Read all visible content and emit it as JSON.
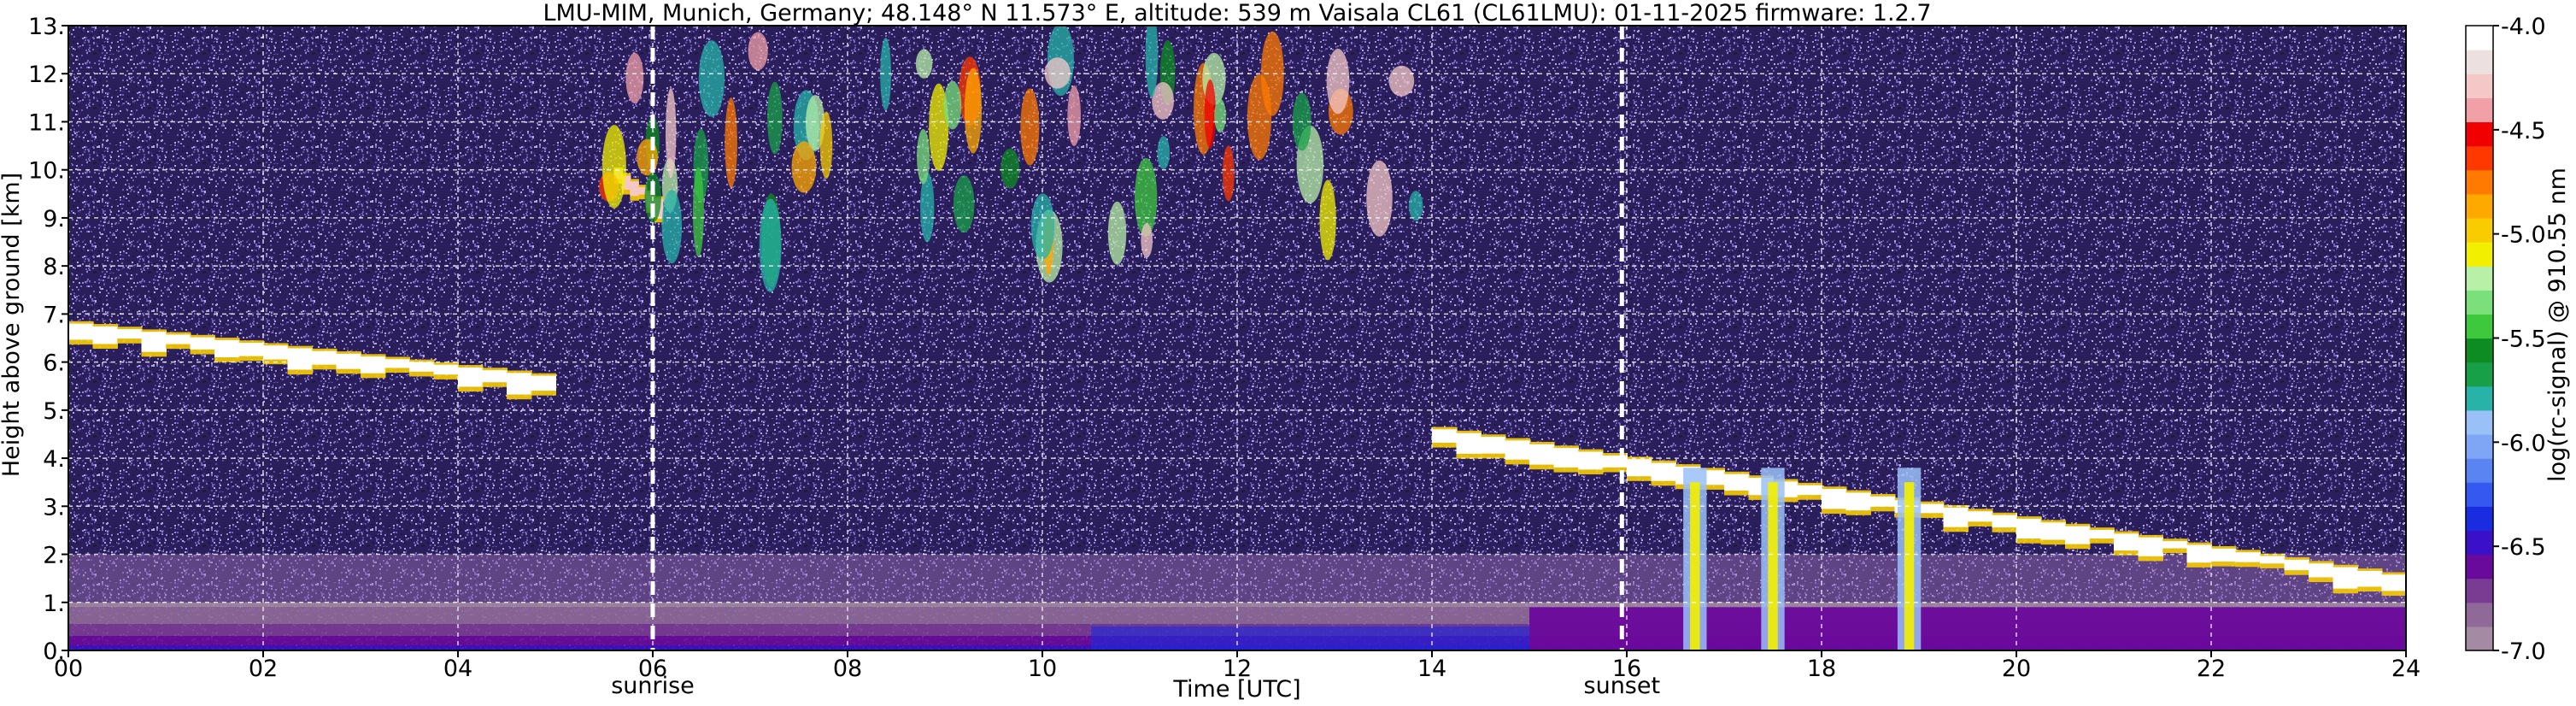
{
  "chart_data": {
    "type": "heatmap",
    "title": "LMU-MIM, Munich, Germany; 48.148° N 11.573° E, altitude: 539 m    Vaisala CL61 (CL61LMU): 01-11-2025    firmware: 1.2.7",
    "xlabel": "Time [UTC]",
    "ylabel": "Height above ground [km]",
    "colorbar_label": "log(rc-signal) @ 910.55 nm",
    "xlim": [
      0,
      24
    ],
    "ylim": [
      0,
      13
    ],
    "clim": [
      -7.0,
      -4.0
    ],
    "x_ticks": [
      0,
      2,
      4,
      6,
      8,
      10,
      12,
      14,
      16,
      18,
      20,
      22,
      24
    ],
    "x_tick_labels": [
      "00",
      "02",
      "04",
      "06",
      "08",
      "10",
      "12",
      "14",
      "16",
      "18",
      "20",
      "22",
      "24"
    ],
    "y_ticks": [
      0,
      1,
      2,
      3,
      4,
      5,
      6,
      7,
      8,
      9,
      10,
      11,
      12,
      13
    ],
    "y_tick_labels": [
      "0.",
      "1.",
      "2.",
      "3.",
      "4.",
      "5.",
      "6.",
      "7.",
      "8.",
      "9.",
      "10.",
      "11.",
      "12.",
      "13."
    ],
    "cbar_ticks": [
      -4.0,
      -4.5,
      -5.0,
      -5.5,
      -6.0,
      -6.5,
      -7.0
    ],
    "cbar_tick_labels": [
      "-4.0",
      "-4.5",
      "-5.0",
      "-5.5",
      "-6.0",
      "-6.5",
      "-7.0"
    ],
    "grid": true,
    "markers": [
      {
        "x": 6.0,
        "label": "sunrise"
      },
      {
        "x": 15.95,
        "label": "sunset"
      }
    ],
    "colors": [
      "#a48aa2",
      "#8f6a98",
      "#7a3c93",
      "#6a0a9c",
      "#3a10c8",
      "#1a2ce0",
      "#3558f0",
      "#5a84f2",
      "#7fa5f5",
      "#9ac0f8",
      "#27b3a8",
      "#18a048",
      "#0d8c22",
      "#3ec83e",
      "#7be07b",
      "#b8f0a8",
      "#f2f000",
      "#f8cc00",
      "#ffa800",
      "#ff7a00",
      "#ff3800",
      "#f00000",
      "#f2a0a8",
      "#f5c8c8",
      "#ece0e0",
      "#ffffff"
    ],
    "features": [
      {
        "kind": "layer",
        "name": "boundary layer",
        "t": [
          0,
          24
        ],
        "h": [
          0,
          1.0
        ],
        "value": -6.7
      },
      {
        "kind": "cloud",
        "t": [
          0,
          5.0
        ],
        "h": [
          4.9,
          6.8
        ],
        "value": -4.1
      },
      {
        "kind": "cloud",
        "t": [
          5.6,
          6.1
        ],
        "h": [
          8.8,
          10.0
        ],
        "value": -4.3
      },
      {
        "kind": "cirrus",
        "t": [
          5.5,
          14.0
        ],
        "h": [
          7.8,
          12.8
        ],
        "value": -5.2
      },
      {
        "kind": "cloud",
        "t": [
          14.0,
          24.0
        ],
        "h": [
          1.5,
          4.6
        ],
        "value": -4.0
      },
      {
        "kind": "precipitation",
        "t": [
          16.5,
          19.2
        ],
        "h": [
          0,
          3.8
        ],
        "value": -5.3
      }
    ]
  }
}
